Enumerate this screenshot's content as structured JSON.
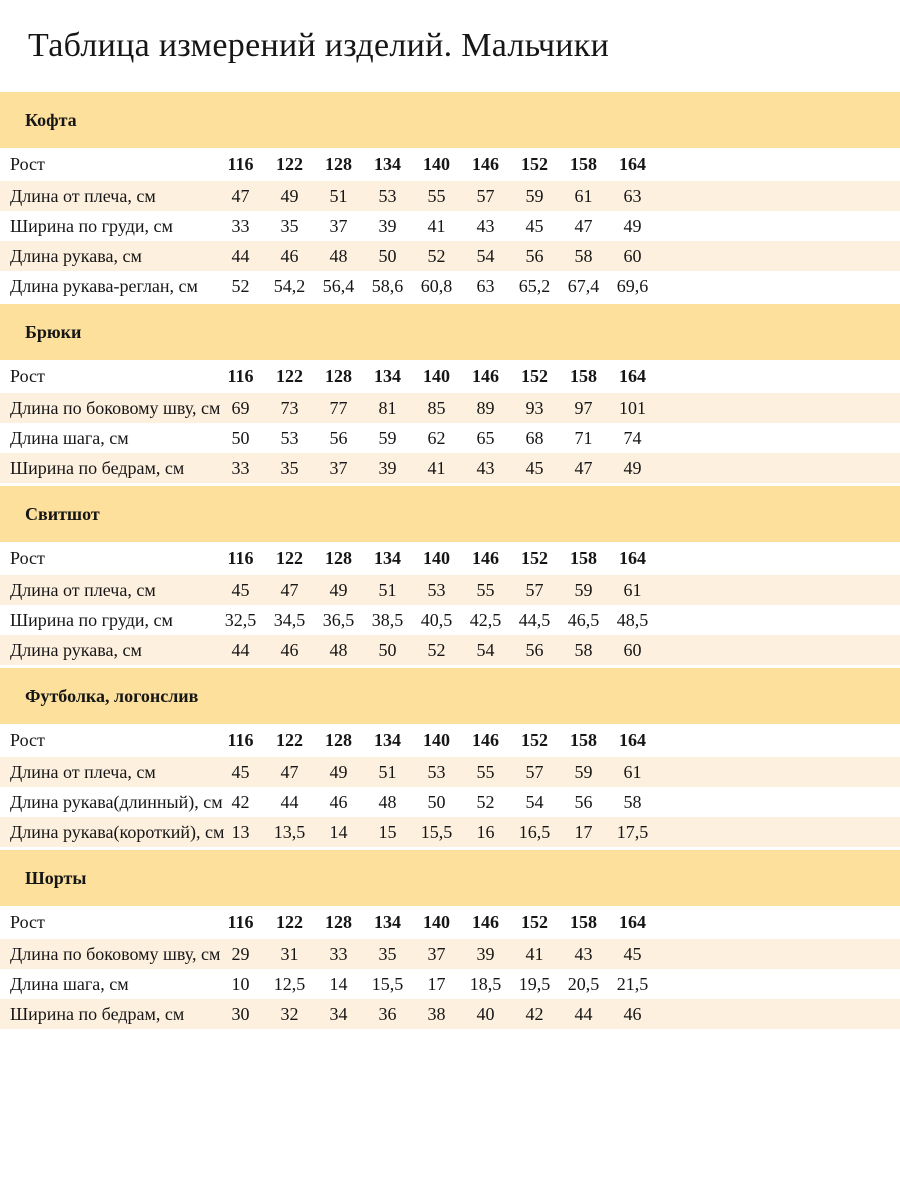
{
  "page_title": "Таблица измерений изделий. Мальчики",
  "row_header_label": "Рост",
  "columns": [
    "116",
    "122",
    "128",
    "134",
    "140",
    "146",
    "152",
    "158",
    "164"
  ],
  "sections": [
    {
      "title": "Кофта",
      "rows": [
        {
          "label": "Длина от плеча, см",
          "values": [
            "47",
            "49",
            "51",
            "53",
            "55",
            "57",
            "59",
            "61",
            "63"
          ]
        },
        {
          "label": "Ширина по груди, см",
          "values": [
            "33",
            "35",
            "37",
            "39",
            "41",
            "43",
            "45",
            "47",
            "49"
          ]
        },
        {
          "label": "Длина рукава, см",
          "values": [
            "44",
            "46",
            "48",
            "50",
            "52",
            "54",
            "56",
            "58",
            "60"
          ]
        },
        {
          "label": "Длина рукава-реглан, см",
          "values": [
            "52",
            "54,2",
            "56,4",
            "58,6",
            "60,8",
            "63",
            "65,2",
            "67,4",
            "69,6"
          ]
        }
      ]
    },
    {
      "title": "Брюки",
      "rows": [
        {
          "label": "Длина по боковому шву, см",
          "values": [
            "69",
            "73",
            "77",
            "81",
            "85",
            "89",
            "93",
            "97",
            "101"
          ]
        },
        {
          "label": "Длина шага, см",
          "values": [
            "50",
            "53",
            "56",
            "59",
            "62",
            "65",
            "68",
            "71",
            "74"
          ]
        },
        {
          "label": "Ширина по бедрам, см",
          "values": [
            "33",
            "35",
            "37",
            "39",
            "41",
            "43",
            "45",
            "47",
            "49"
          ]
        }
      ]
    },
    {
      "title": "Свитшот",
      "rows": [
        {
          "label": "Длина от плеча, см",
          "values": [
            "45",
            "47",
            "49",
            "51",
            "53",
            "55",
            "57",
            "59",
            "61"
          ]
        },
        {
          "label": "Ширина по груди, см",
          "values": [
            "32,5",
            "34,5",
            "36,5",
            "38,5",
            "40,5",
            "42,5",
            "44,5",
            "46,5",
            "48,5"
          ]
        },
        {
          "label": "Длина рукава, см",
          "values": [
            "44",
            "46",
            "48",
            "50",
            "52",
            "54",
            "56",
            "58",
            "60"
          ]
        }
      ]
    },
    {
      "title": "Футболка, логонслив",
      "rows": [
        {
          "label": "Длина от плеча, см",
          "values": [
            "45",
            "47",
            "49",
            "51",
            "53",
            "55",
            "57",
            "59",
            "61"
          ]
        },
        {
          "label": "Длина рукава(длинный), см",
          "values": [
            "42",
            "44",
            "46",
            "48",
            "50",
            "52",
            "54",
            "56",
            "58"
          ]
        },
        {
          "label": "Длина рукава(короткий), см",
          "values": [
            "13",
            "13,5",
            "14",
            "15",
            "15,5",
            "16",
            "16,5",
            "17",
            "17,5"
          ]
        }
      ]
    },
    {
      "title": "Шорты",
      "rows": [
        {
          "label": "Длина по боковому шву, см",
          "values": [
            "29",
            "31",
            "33",
            "35",
            "37",
            "39",
            "41",
            "43",
            "45"
          ]
        },
        {
          "label": "Длина шага, см",
          "values": [
            "10",
            "12,5",
            "14",
            "15,5",
            "17",
            "18,5",
            "19,5",
            "20,5",
            "21,5"
          ]
        },
        {
          "label": "Ширина по бедрам, см",
          "values": [
            "30",
            "32",
            "34",
            "36",
            "38",
            "40",
            "42",
            "44",
            "46"
          ]
        }
      ]
    }
  ],
  "colors": {
    "band_background": "#fce09c",
    "row_alt_background": "#fdf0df",
    "text": "#161616"
  }
}
